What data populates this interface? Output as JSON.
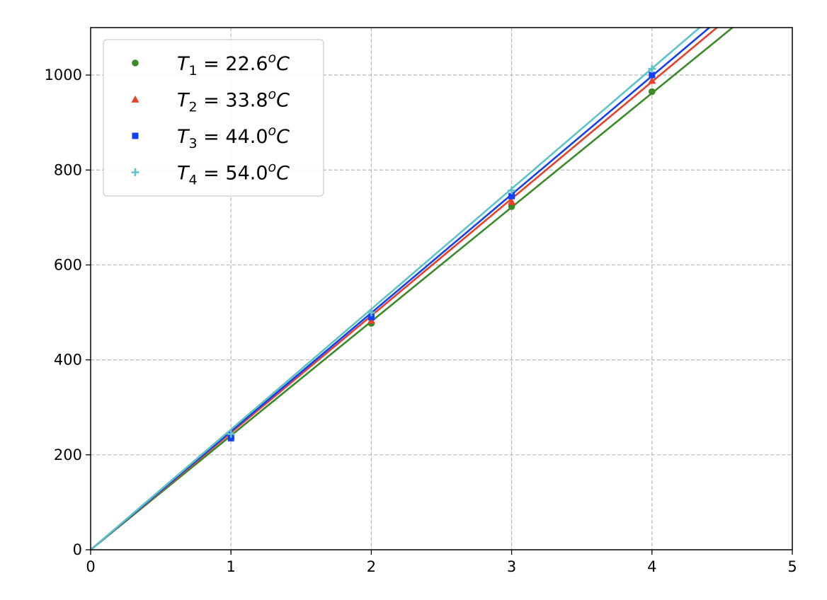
{
  "chart_data": {
    "type": "scatter",
    "title": "",
    "xlabel": "",
    "ylabel": "",
    "xlim": [
      0,
      5
    ],
    "ylim": [
      0,
      1100
    ],
    "xticks": [
      0,
      1,
      2,
      3,
      4,
      5
    ],
    "yticks": [
      0,
      200,
      400,
      600,
      800,
      1000
    ],
    "grid": true,
    "legend_position": "top-left",
    "series": [
      {
        "name": "T_1 = 22.6^oC",
        "legend": {
          "sym": "T",
          "sub": "1",
          "value": "22.6",
          "sup": "o",
          "unit": "C"
        },
        "color": "#3a8a2a",
        "marker": "circle",
        "points": [
          [
            1,
            237
          ],
          [
            2,
            477
          ],
          [
            3,
            723
          ],
          [
            4,
            965
          ]
        ],
        "fit_slope": 240.5
      },
      {
        "name": "T_2 = 33.8^oC",
        "legend": {
          "sym": "T",
          "sub": "2",
          "value": "33.8",
          "sup": "o",
          "unit": "C"
        },
        "color": "#e8402a",
        "marker": "triangle",
        "points": [
          [
            1,
            240
          ],
          [
            2,
            483
          ],
          [
            3,
            733
          ],
          [
            4,
            988
          ]
        ],
        "fit_slope": 246.5
      },
      {
        "name": "T_3 = 44.0^oC",
        "legend": {
          "sym": "T",
          "sub": "3",
          "value": "44.0",
          "sup": "o",
          "unit": "C"
        },
        "color": "#1540f0",
        "marker": "square",
        "points": [
          [
            1,
            235
          ],
          [
            2,
            490
          ],
          [
            3,
            745
          ],
          [
            4,
            1000
          ]
        ],
        "fit_slope": 249.5
      },
      {
        "name": "T_4 = 54.0^oC",
        "legend": {
          "sym": "T",
          "sub": "4",
          "value": "54.0",
          "sup": "o",
          "unit": "C"
        },
        "color": "#5bc4c8",
        "marker": "plus",
        "points": [
          [
            1,
            244
          ],
          [
            2,
            500
          ],
          [
            3,
            757
          ],
          [
            4,
            1013
          ]
        ],
        "fit_slope": 253.5
      }
    ]
  }
}
